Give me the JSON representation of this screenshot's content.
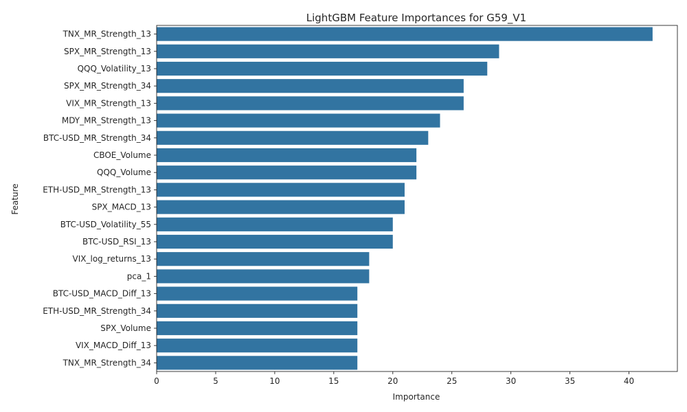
{
  "chart_data": {
    "type": "bar",
    "orientation": "horizontal",
    "title": "LightGBM Feature Importances for G59_V1",
    "xlabel": "Importance",
    "ylabel": "Feature",
    "xlim": [
      0,
      44.1
    ],
    "xticks": [
      0,
      5,
      10,
      15,
      20,
      25,
      30,
      35,
      40
    ],
    "grid": false,
    "bar_color": "#3274a1",
    "categories": [
      "TNX_MR_Strength_13",
      "SPX_MR_Strength_13",
      "QQQ_Volatility_13",
      "SPX_MR_Strength_34",
      "VIX_MR_Strength_13",
      "MDY_MR_Strength_13",
      "BTC-USD_MR_Strength_34",
      "CBOE_Volume",
      "QQQ_Volume",
      "ETH-USD_MR_Strength_13",
      "SPX_MACD_13",
      "BTC-USD_Volatility_55",
      "BTC-USD_RSI_13",
      "VIX_log_returns_13",
      "pca_1",
      "BTC-USD_MACD_Diff_13",
      "ETH-USD_MR_Strength_34",
      "SPX_Volume",
      "VIX_MACD_Diff_13",
      "TNX_MR_Strength_34"
    ],
    "values": [
      42,
      29,
      28,
      26,
      26,
      24,
      23,
      22,
      22,
      21,
      21,
      20,
      20,
      18,
      18,
      17,
      17,
      17,
      17,
      17
    ]
  }
}
